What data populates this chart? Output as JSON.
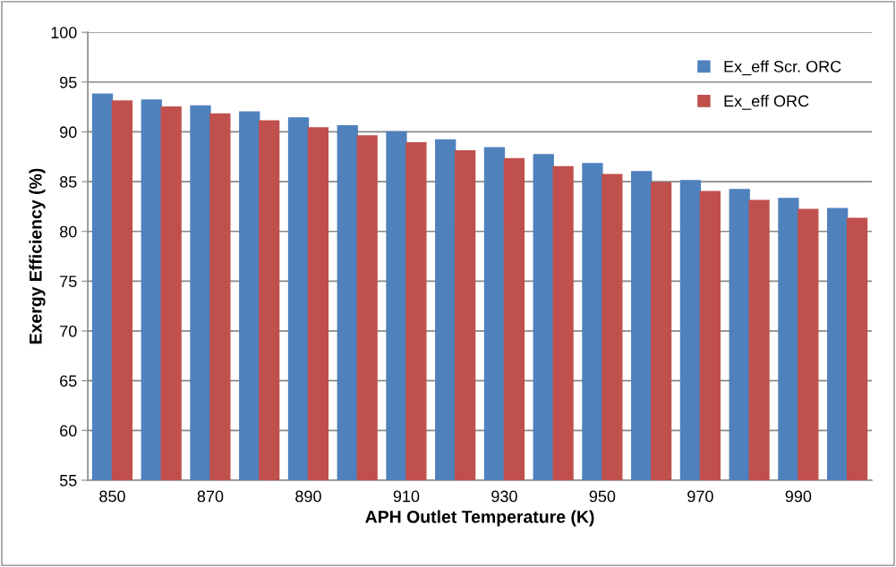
{
  "chart_data": {
    "type": "bar",
    "xlabel": "APH Outlet Temperature (K)",
    "ylabel": "Exergy Efficiency (%)",
    "categories": [
      "850",
      null,
      "870",
      null,
      "890",
      null,
      "910",
      null,
      "930",
      null,
      "950",
      null,
      "970",
      null,
      "990",
      null
    ],
    "series": [
      {
        "name": "Ex_eff Scr. ORC",
        "color": "#4f81bd",
        "values": [
          93.8,
          93.2,
          92.6,
          92.0,
          91.4,
          90.6,
          90.0,
          89.2,
          88.4,
          87.7,
          86.8,
          86.0,
          85.1,
          84.2,
          83.3,
          82.3
        ]
      },
      {
        "name": "Ex_eff ORC",
        "color": "#c0504d",
        "values": [
          93.1,
          92.5,
          91.8,
          91.1,
          90.4,
          89.6,
          88.9,
          88.1,
          87.3,
          86.5,
          85.7,
          84.9,
          84.0,
          83.1,
          82.2,
          81.3
        ]
      }
    ],
    "ylim": [
      55,
      100
    ],
    "yticks": [
      55,
      60,
      65,
      70,
      75,
      80,
      85,
      90,
      95,
      100
    ],
    "grid": "y",
    "legend": "top right"
  }
}
